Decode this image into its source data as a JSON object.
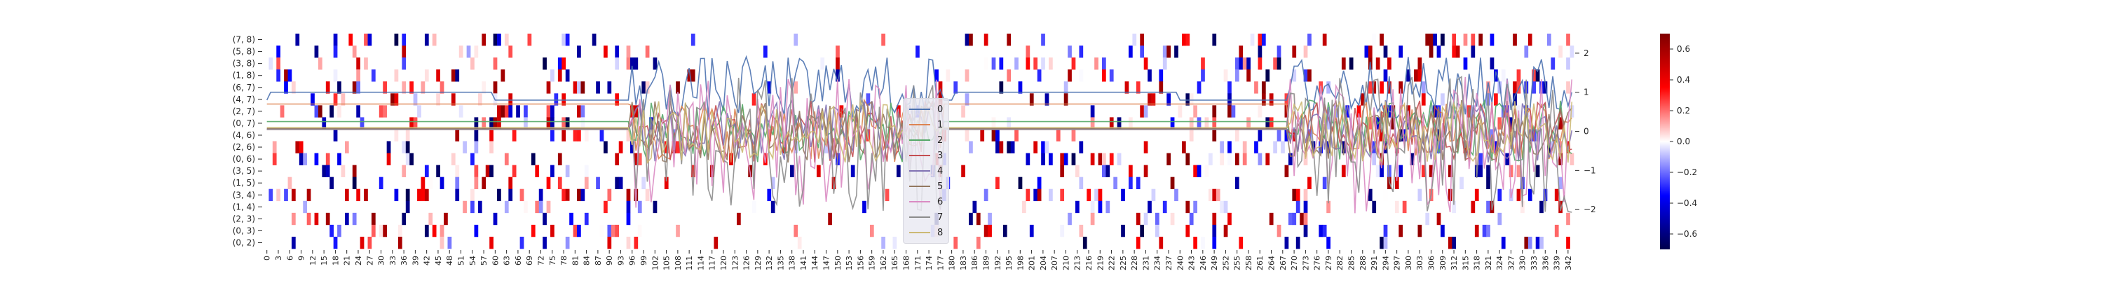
{
  "chart_data": [
    {
      "type": "heatmap",
      "title": "",
      "xlabel": "",
      "ylabel": "",
      "row_labels": [
        "(7, 8)",
        "(5, 8)",
        "(3, 8)",
        "(1, 8)",
        "(6, 7)",
        "(4, 7)",
        "(2, 7)",
        "(0, 7)",
        "(4, 6)",
        "(2, 6)",
        "(0, 6)",
        "(3, 5)",
        "(1, 5)",
        "(3, 4)",
        "(1, 4)",
        "(2, 3)",
        "(0, 3)",
        "(0, 2)"
      ],
      "x_tick_start": 0,
      "x_tick_step": 3,
      "x_tick_end": 342,
      "n_columns": 344,
      "color_range": [
        -0.7,
        0.7
      ],
      "colormap": "seismic",
      "note_cells": "sparse cells with values between -0.7 and 0.7; mostly zero (white)"
    },
    {
      "type": "line",
      "series": [
        {
          "name": "0",
          "color": "#4c72b0"
        },
        {
          "name": "1",
          "color": "#dd8452"
        },
        {
          "name": "2",
          "color": "#55a868"
        },
        {
          "name": "3",
          "color": "#c44e52"
        },
        {
          "name": "4",
          "color": "#8172b3"
        },
        {
          "name": "5",
          "color": "#937860"
        },
        {
          "name": "6",
          "color": "#da8bc3"
        },
        {
          "name": "7",
          "color": "#8c8c8c"
        },
        {
          "name": "8",
          "color": "#ccb974"
        }
      ],
      "ylim": [
        -3,
        2.5
      ],
      "right_ticks": [
        2,
        1,
        0,
        -1,
        -2
      ],
      "legend": "center"
    }
  ],
  "colorbar": {
    "ticks": [
      "0.6",
      "0.4",
      "0.2",
      "0.0",
      "−0.2",
      "−0.4",
      "−0.6"
    ],
    "tick_values": [
      0.6,
      0.4,
      0.2,
      0.0,
      -0.2,
      -0.4,
      -0.6
    ],
    "range": [
      -0.7,
      0.7
    ]
  }
}
